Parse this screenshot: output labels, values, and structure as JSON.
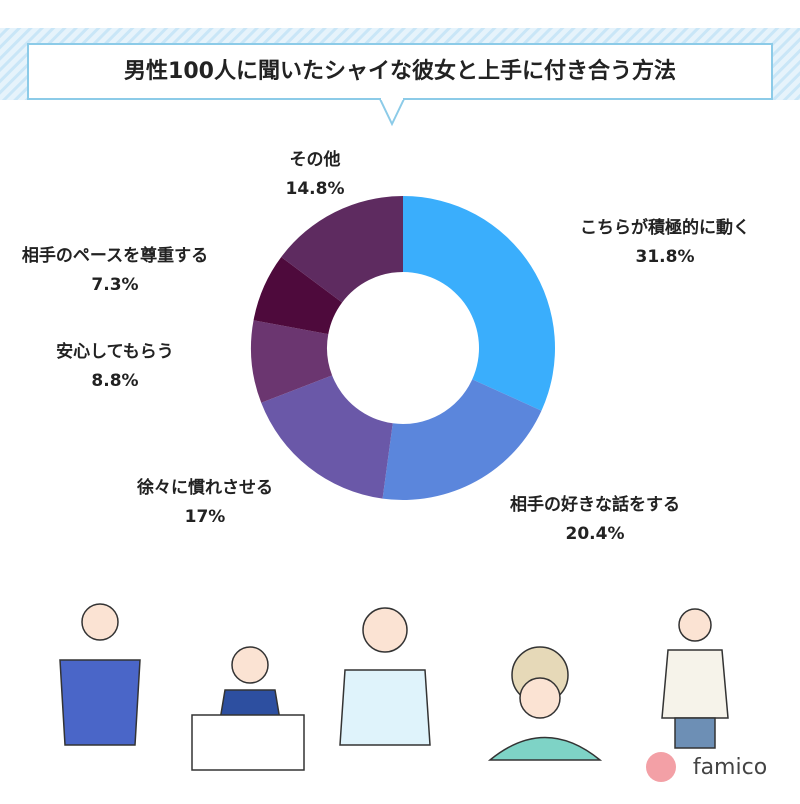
{
  "chart_data": {
    "type": "donut",
    "title": "男性100人に聞いたシャイな彼女と上手に付き合う方法",
    "categories": [
      "こちらが積極的に動く",
      "相手の好きな話をする",
      "徐々に慣れさせる",
      "安心してもらう",
      "相手のペースを尊重する",
      "その他"
    ],
    "values": [
      31.8,
      20.4,
      17,
      8.8,
      7.3,
      14.8
    ],
    "value_labels": [
      "31.8%",
      "20.4%",
      "17%",
      "8.8%",
      "7.3%",
      "14.8%"
    ],
    "colors": [
      "#3aaefc",
      "#5b86dc",
      "#6a58a8",
      "#6b3670",
      "#4e0a3c",
      "#5e2b60"
    ],
    "brand": "famico"
  }
}
